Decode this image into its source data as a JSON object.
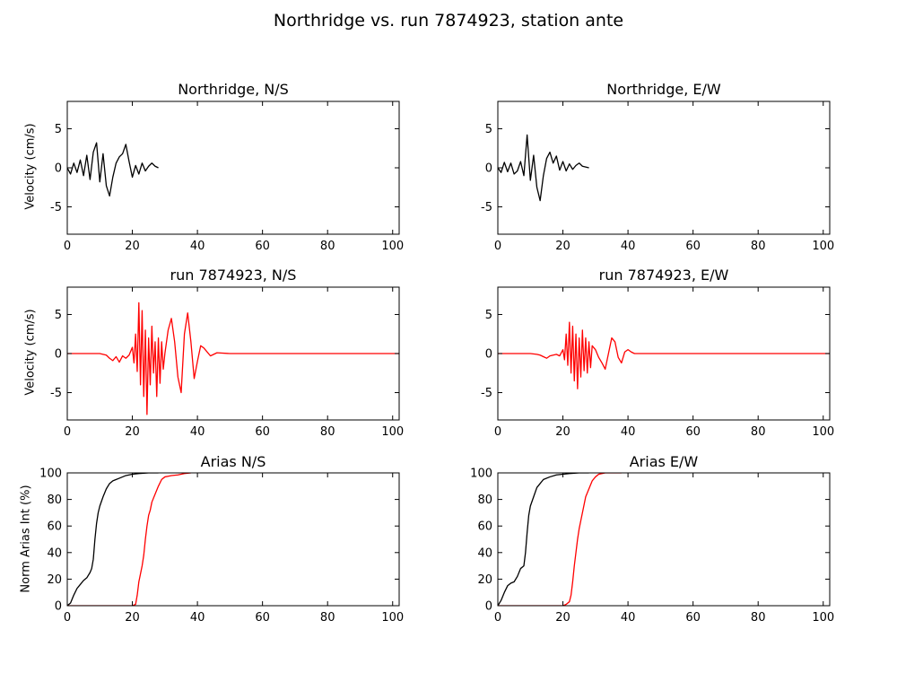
{
  "figure": {
    "title": "Northridge vs. run 7874923, station ante"
  },
  "colors": {
    "recorded": "#000000",
    "simulated": "#ff0000"
  },
  "chart_data": [
    {
      "id": "p1",
      "type": "line",
      "title": "Northridge, N/S",
      "xlabel": "",
      "ylabel": "Velocity (cm/s)",
      "xlim": [
        0,
        102
      ],
      "ylim": [
        -8.5,
        8.5
      ],
      "xticks": [
        0,
        20,
        40,
        60,
        80,
        100
      ],
      "yticks": [
        -5,
        0,
        5
      ],
      "grid": false,
      "series": [
        {
          "color": "#000000",
          "x": [
            0,
            1,
            2,
            3,
            4,
            5,
            6,
            7,
            8,
            9,
            10,
            11,
            12,
            13,
            14,
            15,
            16,
            17,
            18,
            19,
            20,
            21,
            22,
            23,
            24,
            25,
            26,
            27,
            28
          ],
          "y": [
            0,
            -0.8,
            0.6,
            -0.6,
            1,
            -1,
            1.6,
            -1.5,
            2,
            3.2,
            -1.8,
            1.8,
            -2.3,
            -3.6,
            -1.2,
            0.6,
            1.4,
            1.8,
            3,
            0.8,
            -1.2,
            0.3,
            -0.8,
            0.6,
            -0.4,
            0.2,
            0.6,
            0.2,
            0
          ]
        }
      ]
    },
    {
      "id": "p2",
      "type": "line",
      "title": "Northridge, E/W",
      "xlabel": "",
      "ylabel": "",
      "xlim": [
        0,
        102
      ],
      "ylim": [
        -8.5,
        8.5
      ],
      "xticks": [
        0,
        20,
        40,
        60,
        80,
        100
      ],
      "yticks": [
        -5,
        0,
        5
      ],
      "grid": false,
      "series": [
        {
          "color": "#000000",
          "x": [
            0,
            1,
            2,
            3,
            4,
            5,
            6,
            7,
            8,
            9,
            10,
            11,
            12,
            13,
            14,
            15,
            16,
            17,
            18,
            19,
            20,
            21,
            22,
            23,
            24,
            25,
            26,
            27,
            28
          ],
          "y": [
            0,
            -0.6,
            0.7,
            -0.5,
            0.6,
            -0.8,
            -0.4,
            0.8,
            -1,
            4.2,
            -1.6,
            1.6,
            -2.5,
            -4.2,
            -1,
            1.2,
            2,
            0.6,
            1.5,
            -0.3,
            0.8,
            -0.4,
            0.5,
            -0.2,
            0.3,
            0.6,
            0.2,
            0.1,
            0
          ]
        }
      ]
    },
    {
      "id": "p3",
      "type": "line",
      "title": "run 7874923, N/S",
      "xlabel": "",
      "ylabel": "Velocity (cm/s)",
      "xlim": [
        0,
        102
      ],
      "ylim": [
        -8.5,
        8.5
      ],
      "xticks": [
        0,
        20,
        40,
        60,
        80,
        100
      ],
      "yticks": [
        -5,
        0,
        5
      ],
      "grid": false,
      "series": [
        {
          "color": "#ff0000",
          "x": [
            0,
            10,
            12,
            13,
            14,
            15,
            16,
            17,
            18,
            19,
            20,
            20.5,
            21,
            21.5,
            22,
            22.5,
            23,
            23.5,
            24,
            24.5,
            25,
            25.5,
            26,
            26.5,
            27,
            27.5,
            28,
            28.5,
            29,
            29.5,
            30,
            31,
            32,
            33,
            34,
            35,
            36,
            37,
            38,
            39,
            40,
            41,
            42,
            44,
            46,
            50,
            60,
            70,
            80,
            90,
            102
          ],
          "y": [
            0,
            0,
            -0.2,
            -0.6,
            -0.9,
            -0.4,
            -1.1,
            -0.3,
            -0.6,
            -0.2,
            0.8,
            -1.2,
            2.5,
            -2.3,
            6.5,
            -4,
            5.5,
            -5.5,
            3,
            -7.8,
            2,
            -4,
            3.5,
            -2.5,
            1.5,
            -5.5,
            2,
            -3.8,
            1.5,
            -2,
            0,
            3,
            4.5,
            1.5,
            -3,
            -5,
            2.5,
            5.2,
            1.5,
            -3.2,
            -1,
            1,
            0.7,
            -0.3,
            0.1,
            0,
            0,
            0,
            0,
            0,
            0
          ]
        }
      ]
    },
    {
      "id": "p4",
      "type": "line",
      "title": "run 7874923, E/W",
      "xlabel": "",
      "ylabel": "",
      "xlim": [
        0,
        102
      ],
      "ylim": [
        -8.5,
        8.5
      ],
      "xticks": [
        0,
        20,
        40,
        60,
        80,
        100
      ],
      "yticks": [
        -5,
        0,
        5
      ],
      "grid": false,
      "series": [
        {
          "color": "#ff0000",
          "x": [
            0,
            10,
            12,
            13,
            14,
            15,
            16,
            17,
            18,
            19,
            20,
            20.5,
            21,
            21.5,
            22,
            22.5,
            23,
            23.5,
            24,
            24.5,
            25,
            25.5,
            26,
            26.5,
            27,
            27.5,
            28,
            28.5,
            29,
            30,
            31,
            32,
            33,
            34,
            35,
            36,
            37,
            38,
            39,
            40,
            41,
            42,
            44,
            46,
            50,
            60,
            70,
            80,
            90,
            102
          ],
          "y": [
            0,
            0,
            -0.1,
            -0.2,
            -0.4,
            -0.6,
            -0.3,
            -0.2,
            -0.1,
            -0.3,
            0.5,
            -0.8,
            2.5,
            -1.5,
            4,
            -2.5,
            3.5,
            -3.5,
            2.5,
            -4.5,
            2,
            -3,
            3,
            -2.2,
            2,
            -2.5,
            1.5,
            -1.8,
            1,
            0.5,
            -0.5,
            -1.2,
            -2,
            0,
            2,
            1.5,
            -0.5,
            -1.2,
            0.2,
            0.5,
            0.2,
            0,
            0,
            0,
            0,
            0,
            0,
            0,
            0,
            0
          ]
        }
      ]
    },
    {
      "id": "p5",
      "type": "line",
      "title": "Arias N/S",
      "xlabel": "",
      "ylabel": "Norm Arias Int (%)",
      "xlim": [
        0,
        102
      ],
      "ylim": [
        0,
        100
      ],
      "xticks": [
        0,
        20,
        40,
        60,
        80,
        100
      ],
      "yticks": [
        0,
        20,
        40,
        60,
        80,
        100
      ],
      "grid": false,
      "series": [
        {
          "color": "#000000",
          "x": [
            0,
            1,
            2,
            3,
            4,
            5,
            6,
            7,
            7.5,
            8,
            8.5,
            9,
            9.5,
            10,
            11,
            12,
            13,
            14,
            16,
            18,
            20,
            22,
            25,
            28
          ],
          "y": [
            0,
            2,
            8,
            13,
            16,
            19,
            21,
            25,
            28,
            35,
            50,
            62,
            70,
            75,
            82,
            88,
            92,
            94,
            96,
            98,
            99,
            99.5,
            100,
            100
          ]
        },
        {
          "color": "#ff0000",
          "x": [
            0,
            20,
            21,
            21.5,
            22,
            22.5,
            23,
            23.5,
            24,
            24.5,
            25,
            25.5,
            26,
            27,
            28,
            29,
            30,
            31,
            32,
            34,
            36,
            38
          ],
          "y": [
            0,
            0,
            1,
            8,
            18,
            24,
            30,
            38,
            50,
            60,
            68,
            72,
            78,
            84,
            90,
            95,
            97,
            97.5,
            98,
            98.5,
            99.5,
            100
          ]
        }
      ]
    },
    {
      "id": "p6",
      "type": "line",
      "title": "Arias E/W",
      "xlabel": "",
      "ylabel": "",
      "xlim": [
        0,
        102
      ],
      "ylim": [
        0,
        100
      ],
      "xticks": [
        0,
        20,
        40,
        60,
        80,
        100
      ],
      "yticks": [
        0,
        20,
        40,
        60,
        80,
        100
      ],
      "grid": false,
      "series": [
        {
          "color": "#000000",
          "x": [
            0,
            1,
            2,
            3,
            4,
            5,
            6,
            7,
            8,
            8.5,
            9,
            9.5,
            10,
            11,
            12,
            13,
            14,
            16,
            18,
            20,
            22,
            25,
            28
          ],
          "y": [
            0,
            4,
            10,
            15,
            17,
            18,
            22,
            28,
            30,
            40,
            55,
            68,
            75,
            82,
            89,
            92,
            95,
            97,
            98.5,
            99,
            99.5,
            100,
            100
          ]
        },
        {
          "color": "#ff0000",
          "x": [
            0,
            20,
            21,
            22,
            22.5,
            23,
            23.5,
            24,
            24.5,
            25,
            25.5,
            26,
            27,
            28,
            29,
            30,
            31,
            32,
            33,
            34,
            36,
            38
          ],
          "y": [
            0,
            0,
            1,
            3,
            8,
            18,
            30,
            40,
            50,
            58,
            64,
            70,
            82,
            88,
            94,
            97,
            99,
            99.5,
            100,
            100,
            100,
            100
          ]
        }
      ]
    }
  ]
}
